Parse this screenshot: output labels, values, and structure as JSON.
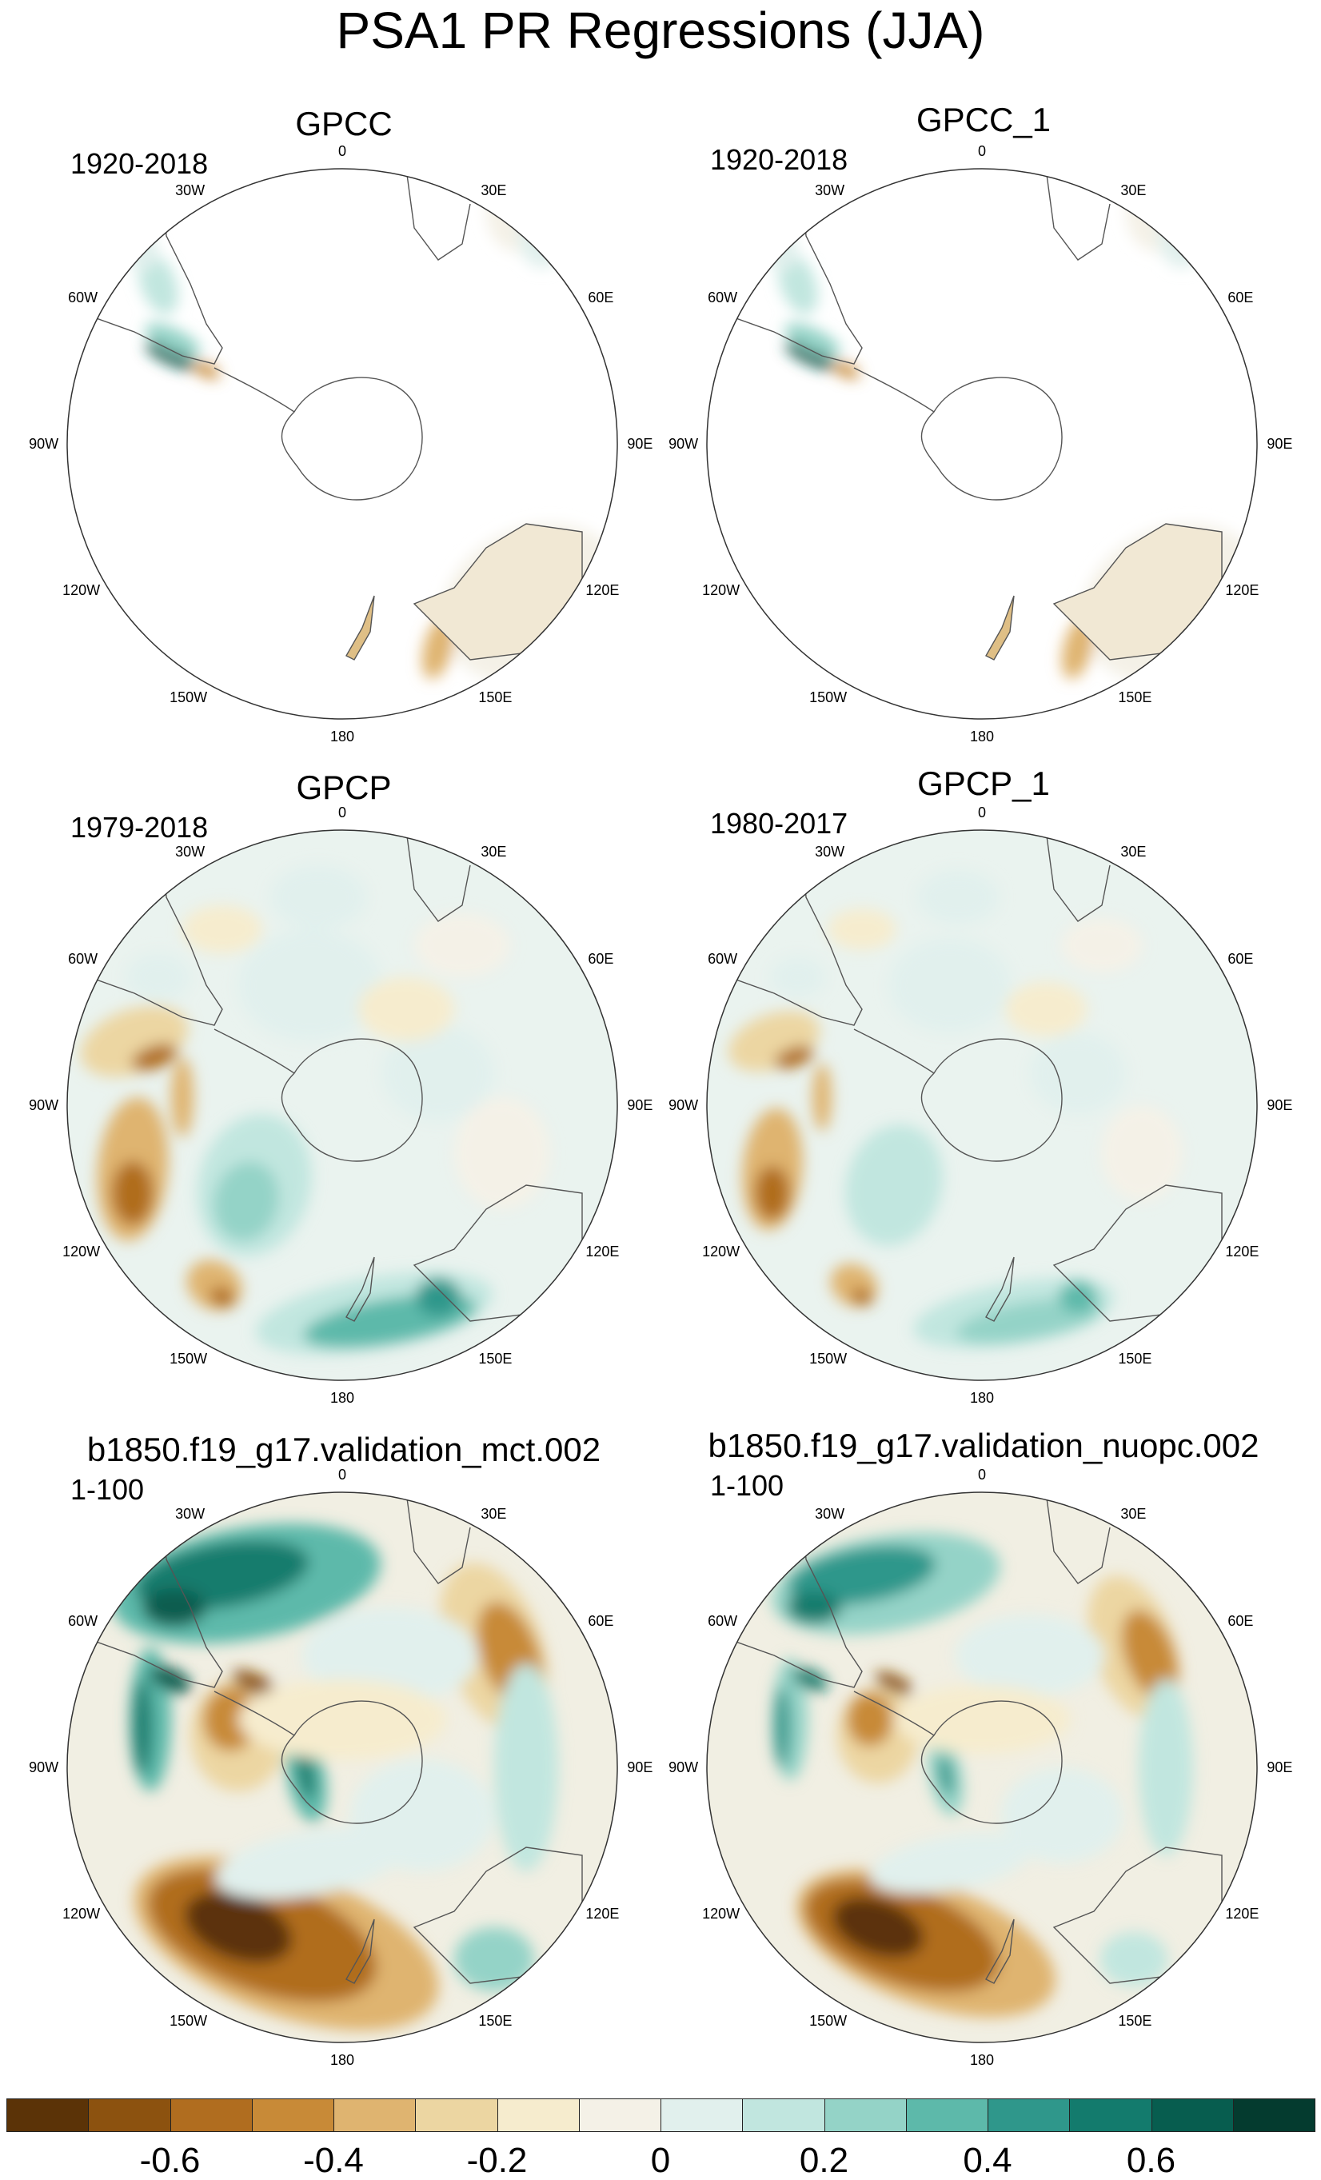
{
  "title": "PSA1 PR Regressions (JJA)",
  "panels": [
    {
      "title": "GPCC",
      "period": "1920-2018",
      "style": "gpcc"
    },
    {
      "title": "GPCC_1",
      "period": "1920-2018",
      "style": "gpcc"
    },
    {
      "title": "GPCP",
      "period": "1979-2018",
      "style": "gpcp"
    },
    {
      "title": "GPCP_1",
      "period": "1980-2017",
      "style": "gpcp"
    },
    {
      "title": "b1850.f19_g17.validation_mct.002",
      "period": "1-100",
      "style": "model"
    },
    {
      "title": "b1850.f19_g17.validation_nuopc.002",
      "period": "1-100",
      "style": "model"
    }
  ],
  "longitude_labels": [
    "0",
    "30E",
    "60E",
    "90E",
    "120E",
    "150E",
    "180",
    "150W",
    "120W",
    "90W",
    "60W",
    "30W"
  ],
  "colorbar": {
    "colors": [
      "#5b3307",
      "#8c520f",
      "#b06d1f",
      "#c88a37",
      "#dfb470",
      "#ecd6a2",
      "#f6ecce",
      "#f4f1e7",
      "#e1f0ed",
      "#c1e6df",
      "#94d3c7",
      "#5db9aa",
      "#2f978b",
      "#137b6d",
      "#075d4f",
      "#043b2f"
    ],
    "tick_labels": [
      "-0.6",
      "-0.4",
      "-0.2",
      "0",
      "0.2",
      "0.4",
      "0.6"
    ]
  }
}
